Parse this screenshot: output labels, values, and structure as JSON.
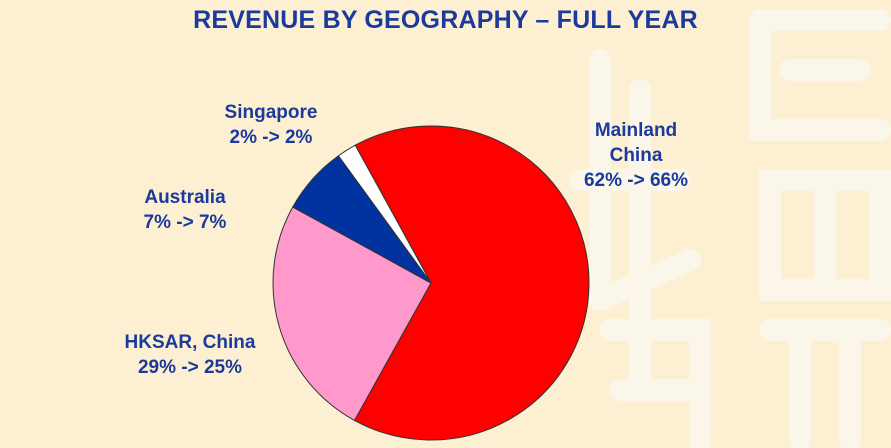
{
  "chart_data": {
    "type": "pie",
    "title": "REVENUE BY GEOGRAPHY – FULL YEAR",
    "slices": [
      {
        "label": "Mainland China",
        "label_lines": [
          "Mainland",
          "China"
        ],
        "value": 66,
        "previous_value": 62,
        "value_text": "62% -> 66%",
        "color": "#ff0000"
      },
      {
        "label": "HKSAR, China",
        "label_lines": [
          "HKSAR, China"
        ],
        "value": 25,
        "previous_value": 29,
        "value_text": "29% -> 25%",
        "color": "#ff99cc"
      },
      {
        "label": "Australia",
        "label_lines": [
          "Australia"
        ],
        "value": 7,
        "previous_value": 7,
        "value_text": "7% -> 7%",
        "color": "#0033a0"
      },
      {
        "label": "Singapore",
        "label_lines": [
          "Singapore"
        ],
        "value": 2,
        "previous_value": 2,
        "value_text": "2% -> 2%",
        "color": "#ffffff"
      }
    ]
  },
  "colors": {
    "background": "#fdf0d2",
    "text": "#1b3a9c",
    "watermark": "#fbf6ea"
  }
}
